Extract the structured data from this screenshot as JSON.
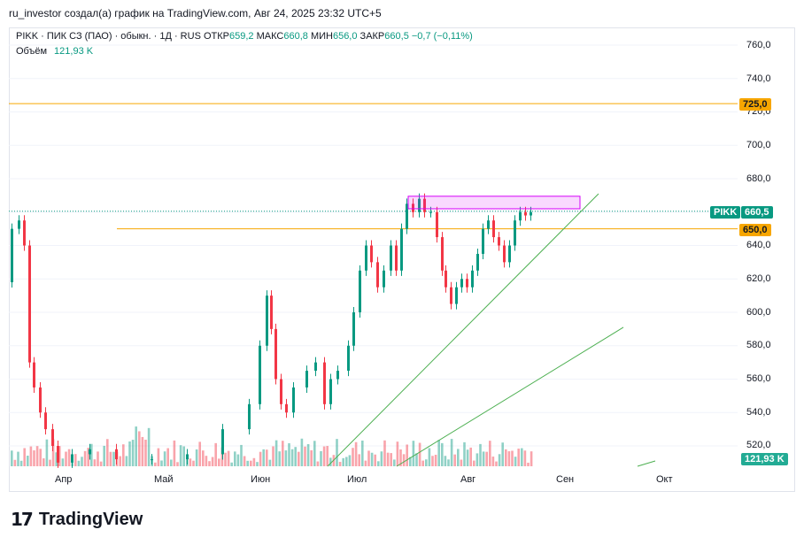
{
  "header": {
    "caption": "ru_investor создал(а) график на TradingView.com, Авг 24, 2025 23:32 UTC+5"
  },
  "legend": {
    "symbol": "PIKK · ПИК СЗ (ПАО) · обыкн. · 1Д · RUS",
    "open_label": "ОТКР",
    "open": "659,2",
    "high_label": "МАКС",
    "high": "660,8",
    "low_label": "МИН",
    "low": "656,0",
    "close_label": "ЗАКР",
    "close": "660,5",
    "change": "−0,7 (−0,11%)",
    "volume_label": "Объём",
    "volume": "121,93 K"
  },
  "price_axis": [
    "760,0",
    "740,0",
    "720,0",
    "700,0",
    "680,0",
    "660,0",
    "640,0",
    "620,0",
    "600,0",
    "580,0",
    "560,0",
    "540,0",
    "520,0"
  ],
  "tags": {
    "level_725": "725,0",
    "level_650": "650,0",
    "ticker": "PIKK",
    "last_price": "660,5",
    "volume": "121,93 K"
  },
  "time_axis": [
    "Апр",
    "Май",
    "Июн",
    "Июл",
    "Авг",
    "Сен",
    "Окт"
  ],
  "colors": {
    "up": "#089981",
    "down": "#f23645",
    "level": "#f7a600",
    "trend": "#4caf50",
    "zone": "#d500f9"
  },
  "brand": {
    "name": "TradingView"
  }
}
